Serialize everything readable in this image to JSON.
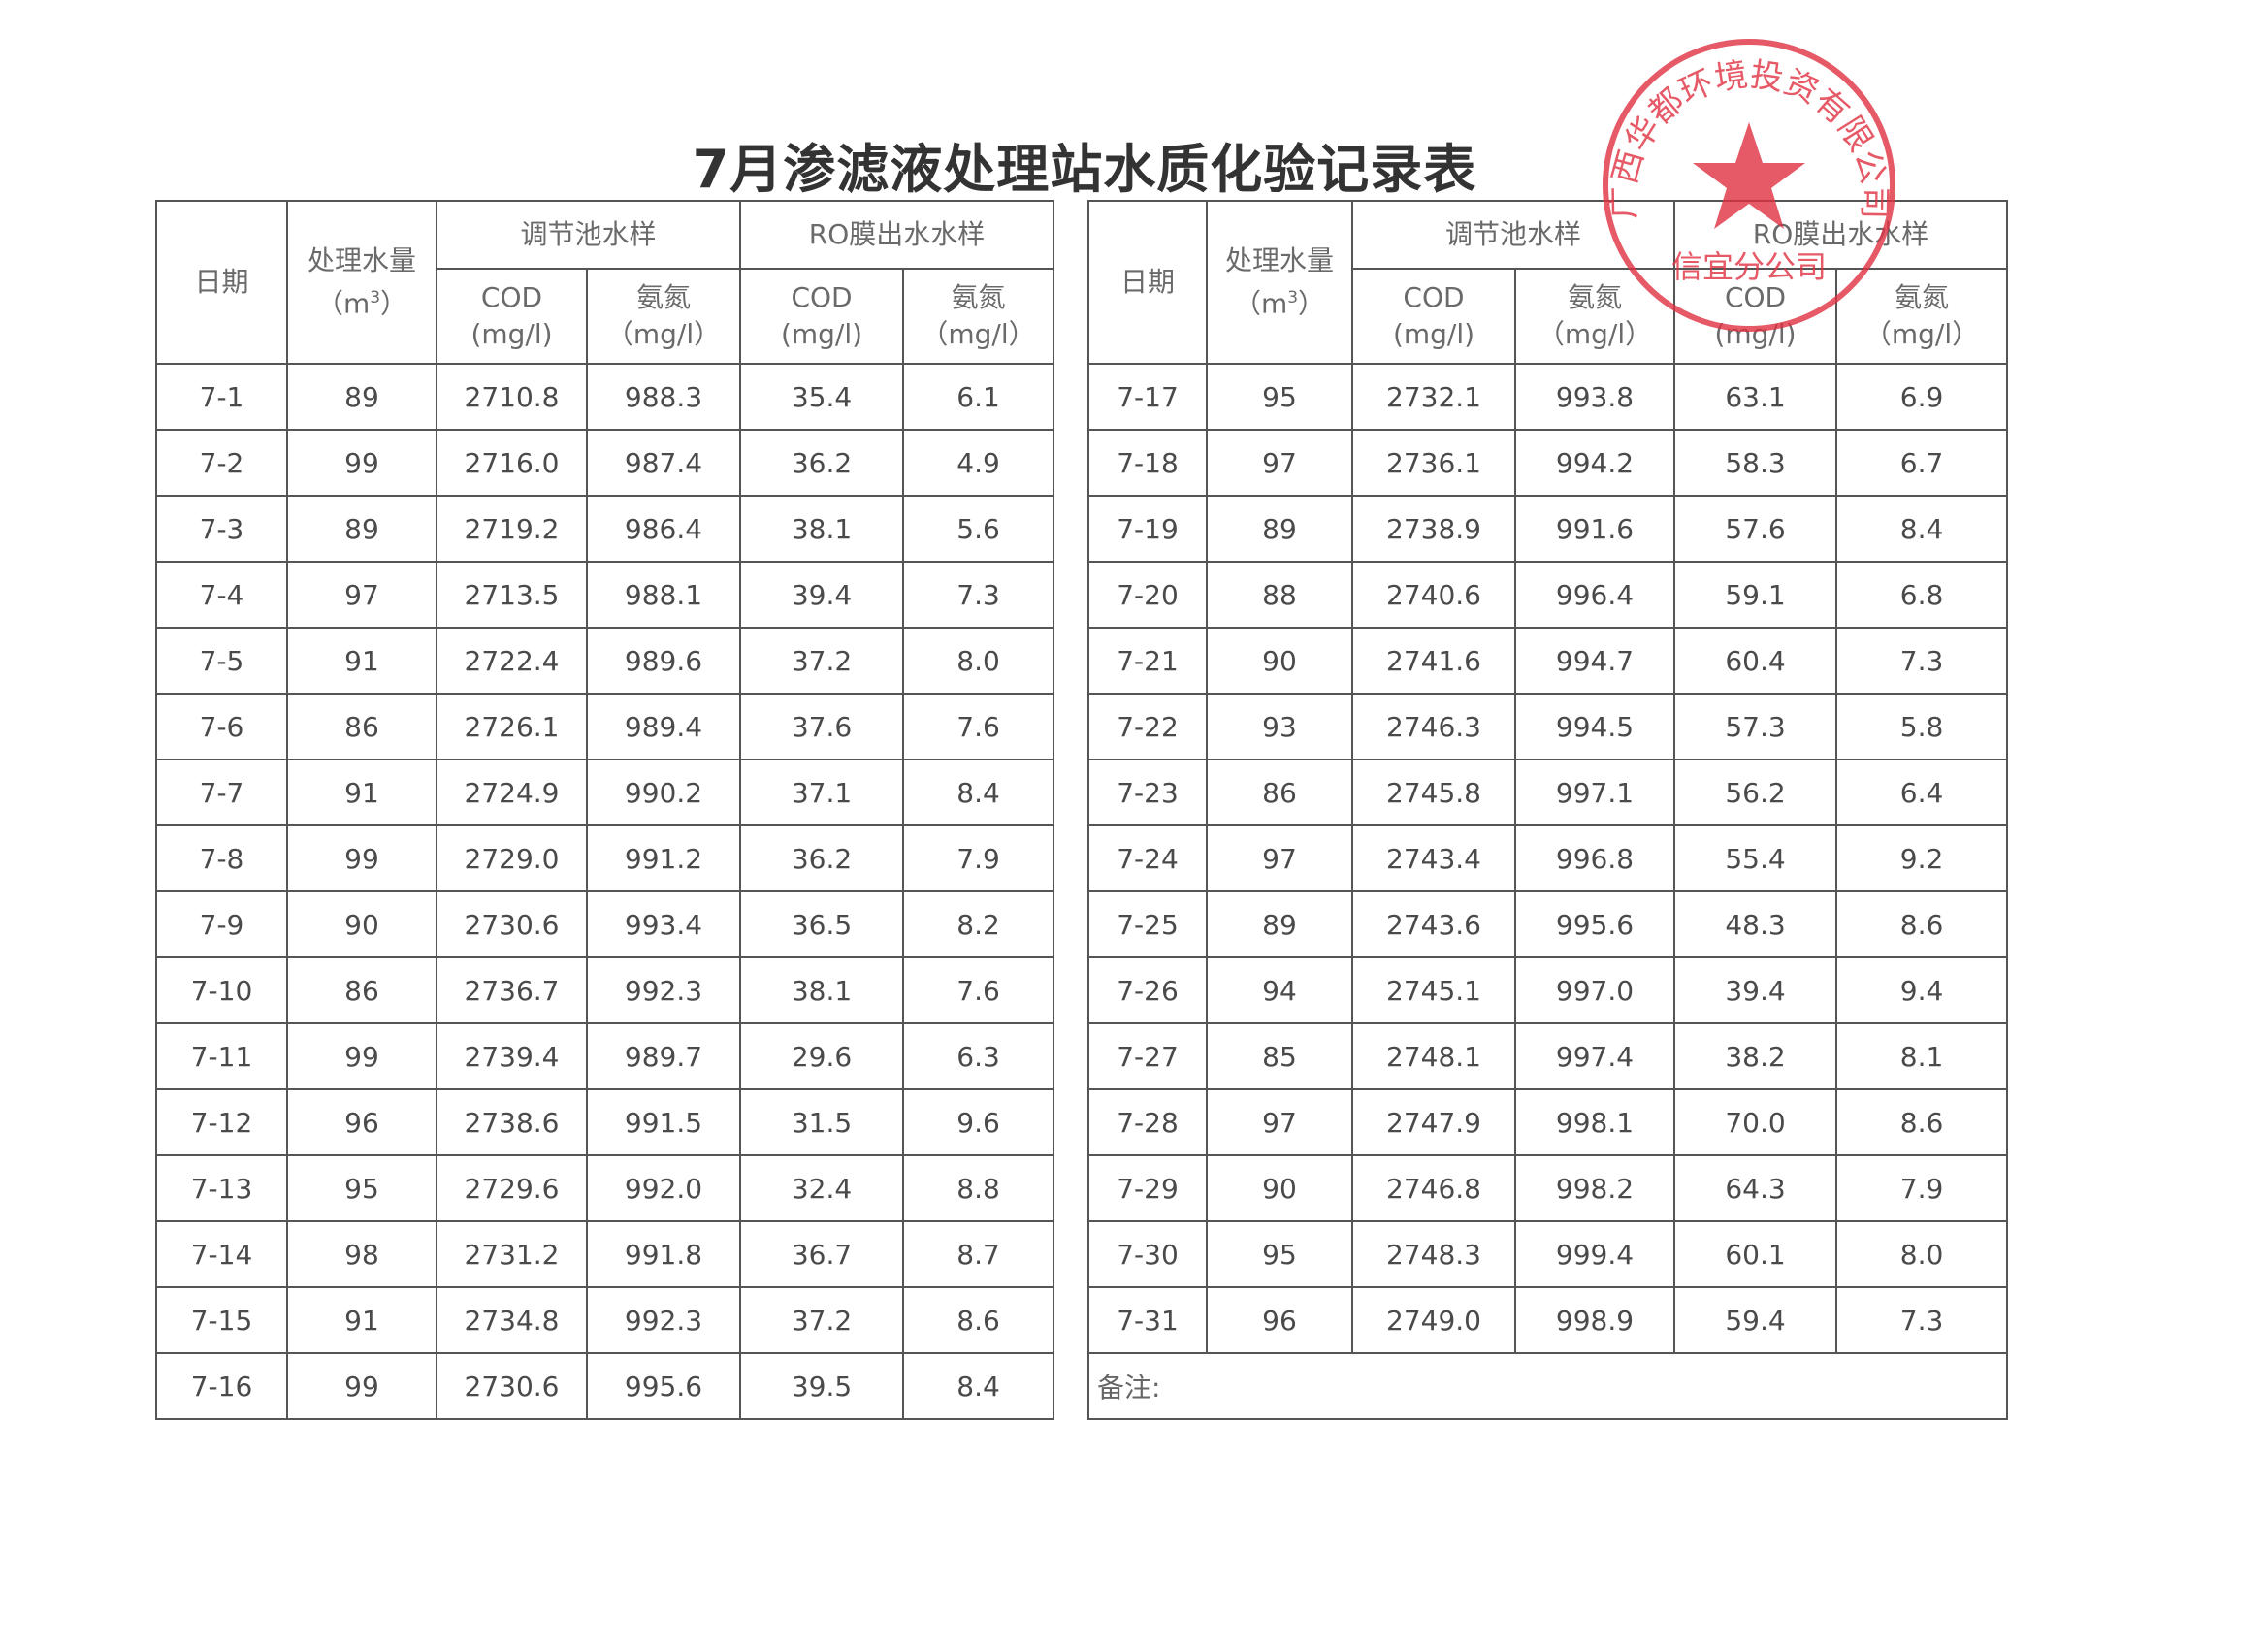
{
  "title": "7月渗滤液处理站水质化验记录表",
  "headers": {
    "date": "日期",
    "volume": "处理水量",
    "volume_unit": "（m",
    "volume_unit_sup": "3",
    "volume_unit_close": "）",
    "tank_group": "调节池水样",
    "ro_group": "RO膜出水水样",
    "cod": "COD",
    "cod_unit": "(mg/l)",
    "nh3": "氨氮",
    "nh3_unit": "（mg/l）"
  },
  "remark_label": "备注:",
  "stamp": {
    "text_outer": "广西华都环境投资有限公司",
    "text_inner": "信宜分公司",
    "color": "#e03040"
  },
  "left_rows": [
    [
      "7-1",
      "89",
      "2710.8",
      "988.3",
      "35.4",
      "6.1"
    ],
    [
      "7-2",
      "99",
      "2716.0",
      "987.4",
      "36.2",
      "4.9"
    ],
    [
      "7-3",
      "89",
      "2719.2",
      "986.4",
      "38.1",
      "5.6"
    ],
    [
      "7-4",
      "97",
      "2713.5",
      "988.1",
      "39.4",
      "7.3"
    ],
    [
      "7-5",
      "91",
      "2722.4",
      "989.6",
      "37.2",
      "8.0"
    ],
    [
      "7-6",
      "86",
      "2726.1",
      "989.4",
      "37.6",
      "7.6"
    ],
    [
      "7-7",
      "91",
      "2724.9",
      "990.2",
      "37.1",
      "8.4"
    ],
    [
      "7-8",
      "99",
      "2729.0",
      "991.2",
      "36.2",
      "7.9"
    ],
    [
      "7-9",
      "90",
      "2730.6",
      "993.4",
      "36.5",
      "8.2"
    ],
    [
      "7-10",
      "86",
      "2736.7",
      "992.3",
      "38.1",
      "7.6"
    ],
    [
      "7-11",
      "99",
      "2739.4",
      "989.7",
      "29.6",
      "6.3"
    ],
    [
      "7-12",
      "96",
      "2738.6",
      "991.5",
      "31.5",
      "9.6"
    ],
    [
      "7-13",
      "95",
      "2729.6",
      "992.0",
      "32.4",
      "8.8"
    ],
    [
      "7-14",
      "98",
      "2731.2",
      "991.8",
      "36.7",
      "8.7"
    ],
    [
      "7-15",
      "91",
      "2734.8",
      "992.3",
      "37.2",
      "8.6"
    ],
    [
      "7-16",
      "99",
      "2730.6",
      "995.6",
      "39.5",
      "8.4"
    ]
  ],
  "right_rows": [
    [
      "7-17",
      "95",
      "2732.1",
      "993.8",
      "63.1",
      "6.9"
    ],
    [
      "7-18",
      "97",
      "2736.1",
      "994.2",
      "58.3",
      "6.7"
    ],
    [
      "7-19",
      "89",
      "2738.9",
      "991.6",
      "57.6",
      "8.4"
    ],
    [
      "7-20",
      "88",
      "2740.6",
      "996.4",
      "59.1",
      "6.8"
    ],
    [
      "7-21",
      "90",
      "2741.6",
      "994.7",
      "60.4",
      "7.3"
    ],
    [
      "7-22",
      "93",
      "2746.3",
      "994.5",
      "57.3",
      "5.8"
    ],
    [
      "7-23",
      "86",
      "2745.8",
      "997.1",
      "56.2",
      "6.4"
    ],
    [
      "7-24",
      "97",
      "2743.4",
      "996.8",
      "55.4",
      "9.2"
    ],
    [
      "7-25",
      "89",
      "2743.6",
      "995.6",
      "48.3",
      "8.6"
    ],
    [
      "7-26",
      "94",
      "2745.1",
      "997.0",
      "39.4",
      "9.4"
    ],
    [
      "7-27",
      "85",
      "2748.1",
      "997.4",
      "38.2",
      "8.1"
    ],
    [
      "7-28",
      "97",
      "2747.9",
      "998.1",
      "70.0",
      "8.6"
    ],
    [
      "7-29",
      "90",
      "2746.8",
      "998.2",
      "64.3",
      "7.9"
    ],
    [
      "7-30",
      "95",
      "2748.3",
      "999.4",
      "60.1",
      "8.0"
    ],
    [
      "7-31",
      "96",
      "2749.0",
      "998.9",
      "59.4",
      "7.3"
    ]
  ]
}
